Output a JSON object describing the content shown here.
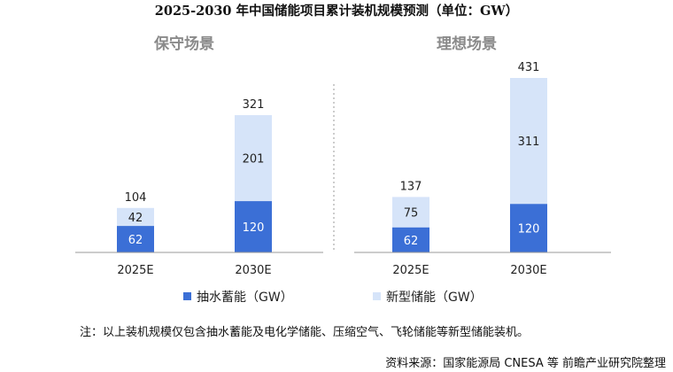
{
  "chart_data": {
    "type": "bar",
    "stacked": true,
    "title": "2025-2030 年中国储能项目累计装机规模预测（单位：GW）",
    "panels": [
      {
        "title": "保守场景",
        "categories": [
          "2025E",
          "2030E"
        ],
        "series": [
          {
            "name": "抽水蓄能（GW）",
            "values": [
              62,
              120
            ]
          },
          {
            "name": "新型储能（GW）",
            "values": [
              42,
              201
            ]
          }
        ],
        "totals": [
          104,
          321
        ]
      },
      {
        "title": "理想场景",
        "categories": [
          "2025E",
          "2030E"
        ],
        "series": [
          {
            "name": "抽水蓄能（GW）",
            "values": [
              62,
              120
            ]
          },
          {
            "name": "新型储能（GW）",
            "values": [
              75,
              311
            ]
          }
        ],
        "totals": [
          137,
          431
        ]
      }
    ],
    "legend": [
      {
        "name": "抽水蓄能（GW）",
        "color": "#3b6fd6"
      },
      {
        "name": "新型储能（GW）",
        "color": "#d6e4f9"
      }
    ],
    "legend_position": "bottom",
    "grid": false
  },
  "note": "注：以上装机规模仅包含抽水蓄能及电化学储能、压缩空气、飞轮储能等新型储能装机。",
  "source": "资料来源：国家能源局  CNESA 等  前瞻产业研究院整理"
}
